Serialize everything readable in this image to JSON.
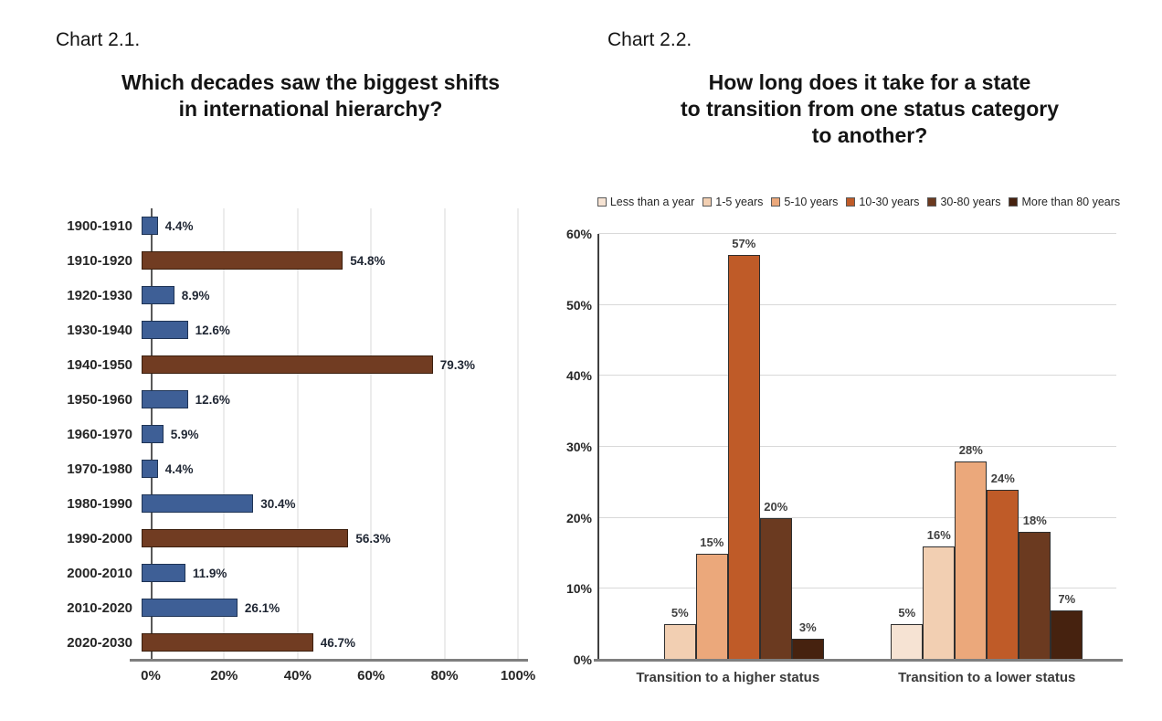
{
  "left_chart": {
    "chart_label": "Chart 2.1.",
    "title_lines": {
      "0": "Which decades saw the biggest shifts",
      "1": "in international hierarchy?"
    }
  },
  "right_chart": {
    "chart_label": "Chart 2.2.",
    "title_lines": {
      "0": "How long does it take for a state",
      "1": "to transition from one status category",
      "2": "to another?"
    }
  },
  "chart_data": [
    {
      "type": "bar",
      "orientation": "horizontal",
      "title": "Which decades saw the biggest shifts in international hierarchy?",
      "categories": [
        "1900-1910",
        "1910-1920",
        "1920-1930",
        "1930-1940",
        "1940-1950",
        "1950-1960",
        "1960-1970",
        "1970-1980",
        "1980-1990",
        "1990-2000",
        "2000-2010",
        "2010-2020",
        "2020-2030"
      ],
      "values": [
        4.4,
        54.8,
        8.9,
        12.6,
        79.3,
        12.6,
        5.9,
        4.4,
        30.4,
        56.3,
        11.9,
        26.1,
        46.7
      ],
      "labels": [
        "4.4%",
        "54.8%",
        "8.9%",
        "12.6%",
        "79.3%",
        "12.6%",
        "5.9%",
        "4.4%",
        "30.4%",
        "56.3%",
        "11.9%",
        "26.1%",
        "46.7%"
      ],
      "bar_series": [
        "blue",
        "brown",
        "blue",
        "blue",
        "brown",
        "blue",
        "blue",
        "blue",
        "blue",
        "brown",
        "blue",
        "blue",
        "brown"
      ],
      "series_colors": {
        "blue": {
          "fill": "#3E5F96",
          "border": "#1F3455"
        },
        "brown": {
          "fill": "#713C22",
          "border": "#3B1F0E"
        }
      },
      "xlim": [
        0,
        100
      ],
      "x_ticks": [
        {
          "value": 0,
          "label": "0%"
        },
        {
          "value": 20,
          "label": "20%"
        },
        {
          "value": 40,
          "label": "40%"
        },
        {
          "value": 60,
          "label": "60%"
        },
        {
          "value": 80,
          "label": "80%"
        },
        {
          "value": 100,
          "label": "100%"
        }
      ],
      "grid": "vertical gridlines every 20%, legend off"
    },
    {
      "type": "bar",
      "orientation": "vertical-grouped",
      "title": "How long does it take for a state to transition from one status category to another?",
      "categories": [
        "Transition to a higher status",
        "Transition to a lower status"
      ],
      "series": [
        {
          "name": "Less than a year",
          "color": "#F6E3D3",
          "values": [
            0,
            5
          ],
          "labels": [
            "",
            "5%"
          ]
        },
        {
          "name": "1-5 years",
          "color": "#F2CFB2",
          "values": [
            5,
            16
          ],
          "labels": [
            "5%",
            "16%"
          ]
        },
        {
          "name": "5-10 years",
          "color": "#EBA87B",
          "values": [
            15,
            28
          ],
          "labels": [
            "15%",
            "28%"
          ]
        },
        {
          "name": "10-30 years",
          "color": "#BF5B28",
          "values": [
            57,
            24
          ],
          "labels": [
            "57%",
            "24%"
          ]
        },
        {
          "name": "30-80 years",
          "color": "#6B3A20",
          "values": [
            20,
            18
          ],
          "labels": [
            "20%",
            "18%"
          ]
        },
        {
          "name": "More than 80 years",
          "color": "#46220F",
          "values": [
            3,
            7
          ],
          "labels": [
            "3%",
            "7%"
          ]
        }
      ],
      "ylim": [
        0,
        60
      ],
      "y_ticks": [
        {
          "value": 0,
          "label": "0%"
        },
        {
          "value": 10,
          "label": "10%"
        },
        {
          "value": 20,
          "label": "20%"
        },
        {
          "value": 30,
          "label": "30%"
        },
        {
          "value": 40,
          "label": "40%"
        },
        {
          "value": 50,
          "label": "50%"
        },
        {
          "value": 60,
          "label": "60%"
        }
      ],
      "grid": "horizontal gridlines every 10%, legend top"
    }
  ]
}
